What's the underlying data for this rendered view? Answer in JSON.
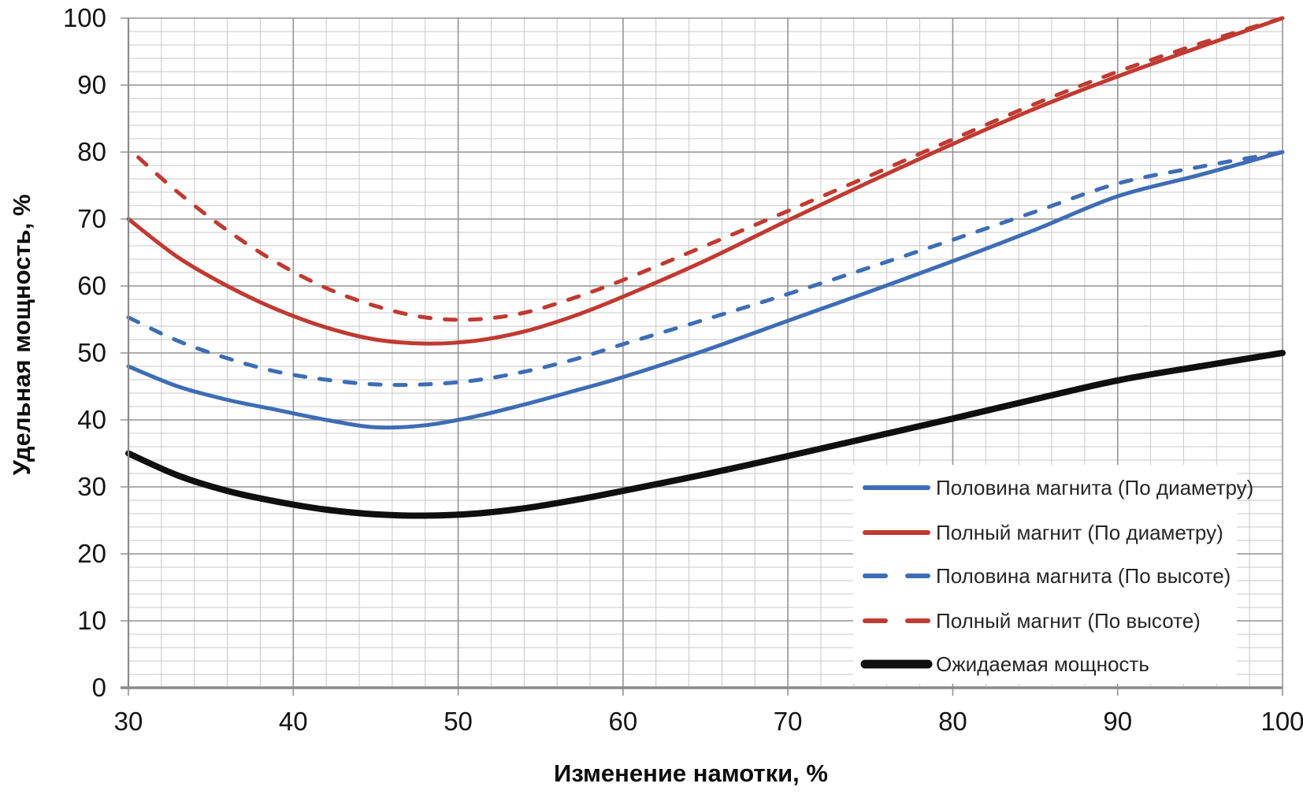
{
  "chart_data": {
    "type": "line",
    "title": "",
    "xlabel": "Изменение намотки, %",
    "ylabel": "Удельная мощность, %",
    "xlim": [
      30,
      100
    ],
    "ylim": [
      0,
      100
    ],
    "x_major_ticks": [
      30,
      40,
      50,
      60,
      70,
      80,
      90,
      100
    ],
    "y_major_ticks": [
      0,
      10,
      20,
      30,
      40,
      50,
      60,
      70,
      80,
      90,
      100
    ],
    "x_minor_step": 2,
    "y_minor_step": 2,
    "grid": "major+minor",
    "legend_position": "inside-bottom-right",
    "colors": {
      "background": "#ffffff",
      "grid_minor": "#c9c9c9",
      "grid_major": "#949494",
      "axis": "#8a8a8a",
      "blue": "#3e6db5",
      "red": "#c03a31",
      "black": "#0f0f0f"
    },
    "series": [
      {
        "name": "Половина магнита (По диаметру)",
        "color": "#3e6db5",
        "style": "solid",
        "width": 5,
        "points": [
          [
            30,
            48
          ],
          [
            33,
            45
          ],
          [
            36,
            43
          ],
          [
            39,
            41.5
          ],
          [
            42,
            40
          ],
          [
            45,
            38.9
          ],
          [
            48,
            39.2
          ],
          [
            51,
            40.5
          ],
          [
            54,
            42.3
          ],
          [
            57,
            44.3
          ],
          [
            60,
            46.4
          ],
          [
            65,
            50.4
          ],
          [
            70,
            54.8
          ],
          [
            75,
            59.2
          ],
          [
            80,
            63.7
          ],
          [
            85,
            68.4
          ],
          [
            90,
            73.4
          ],
          [
            95,
            76.6
          ],
          [
            100,
            80
          ]
        ]
      },
      {
        "name": "Полный магнит (По диаметру)",
        "color": "#c03a31",
        "style": "solid",
        "width": 5,
        "points": [
          [
            30,
            70
          ],
          [
            33,
            64.3
          ],
          [
            36,
            60
          ],
          [
            39,
            56.5
          ],
          [
            42,
            53.8
          ],
          [
            45,
            52
          ],
          [
            48,
            51.4
          ],
          [
            51,
            51.8
          ],
          [
            54,
            53.2
          ],
          [
            57,
            55.5
          ],
          [
            60,
            58.4
          ],
          [
            65,
            63.8
          ],
          [
            70,
            69.8
          ],
          [
            75,
            75.6
          ],
          [
            80,
            81.2
          ],
          [
            85,
            86.5
          ],
          [
            90,
            91.3
          ],
          [
            95,
            95.7
          ],
          [
            100,
            100
          ]
        ]
      },
      {
        "name": "Половина магнита (По высоте)",
        "color": "#3e6db5",
        "style": "dashed",
        "width": 5,
        "points": [
          [
            30,
            55.3
          ],
          [
            33,
            51.8
          ],
          [
            36,
            49.2
          ],
          [
            39,
            47.2
          ],
          [
            42,
            46
          ],
          [
            45,
            45.3
          ],
          [
            48,
            45.3
          ],
          [
            51,
            45.9
          ],
          [
            54,
            47.2
          ],
          [
            57,
            49
          ],
          [
            60,
            51.3
          ],
          [
            65,
            55
          ],
          [
            70,
            58.8
          ],
          [
            75,
            62.8
          ],
          [
            80,
            66.9
          ],
          [
            85,
            71.1
          ],
          [
            90,
            75.3
          ],
          [
            95,
            77.8
          ],
          [
            100,
            80
          ]
        ]
      },
      {
        "name": "Полный магнит (По высоте)",
        "color": "#c03a31",
        "style": "dashed",
        "width": 5,
        "points": [
          [
            30.6,
            79.2
          ],
          [
            33,
            74
          ],
          [
            36,
            68.3
          ],
          [
            39,
            63.5
          ],
          [
            42,
            59.7
          ],
          [
            45,
            57
          ],
          [
            48,
            55.3
          ],
          [
            51,
            55
          ],
          [
            54,
            56
          ],
          [
            57,
            58.2
          ],
          [
            60,
            60.9
          ],
          [
            65,
            66
          ],
          [
            70,
            71.2
          ],
          [
            75,
            76.5
          ],
          [
            80,
            81.9
          ],
          [
            85,
            87.2
          ],
          [
            90,
            92
          ],
          [
            95,
            96.2
          ],
          [
            100,
            100
          ]
        ]
      },
      {
        "name": "Ожидаемая мощность",
        "color": "#0f0f0f",
        "style": "solid",
        "width": 8,
        "points": [
          [
            30,
            35
          ],
          [
            33,
            31.7
          ],
          [
            36,
            29.4
          ],
          [
            39,
            27.8
          ],
          [
            42,
            26.6
          ],
          [
            45,
            25.9
          ],
          [
            48,
            25.7
          ],
          [
            51,
            26
          ],
          [
            54,
            26.8
          ],
          [
            57,
            28
          ],
          [
            60,
            29.4
          ],
          [
            65,
            31.9
          ],
          [
            70,
            34.6
          ],
          [
            75,
            37.4
          ],
          [
            80,
            40.2
          ],
          [
            85,
            43.1
          ],
          [
            90,
            45.9
          ],
          [
            95,
            48
          ],
          [
            100,
            50
          ]
        ]
      }
    ]
  }
}
